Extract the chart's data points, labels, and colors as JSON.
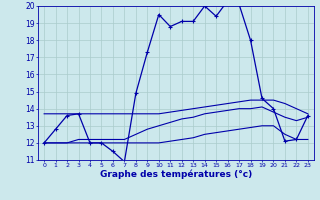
{
  "title": "Graphe des températures (°c)",
  "bg_color": "#cce8ec",
  "grid_color": "#aacccc",
  "line_color": "#0000aa",
  "xlim": [
    -0.5,
    23.5
  ],
  "ylim": [
    11,
    20
  ],
  "yticks": [
    11,
    12,
    13,
    14,
    15,
    16,
    17,
    18,
    19,
    20
  ],
  "xticks": [
    0,
    1,
    2,
    3,
    4,
    5,
    6,
    7,
    8,
    9,
    10,
    11,
    12,
    13,
    14,
    15,
    16,
    17,
    18,
    19,
    20,
    21,
    22,
    23
  ],
  "series_main": [
    12.0,
    12.8,
    13.6,
    13.7,
    12.0,
    12.0,
    11.5,
    10.9,
    14.9,
    17.3,
    19.5,
    18.8,
    19.1,
    19.1,
    20.0,
    19.4,
    20.3,
    20.1,
    18.0,
    14.6,
    14.0,
    12.1,
    12.2,
    13.6
  ],
  "series_max": [
    13.7,
    13.7,
    13.7,
    13.7,
    13.7,
    13.7,
    13.7,
    13.7,
    13.7,
    13.7,
    13.7,
    13.8,
    13.9,
    14.0,
    14.1,
    14.2,
    14.3,
    14.4,
    14.5,
    14.5,
    14.5,
    14.3,
    14.0,
    13.7
  ],
  "series_min": [
    12.0,
    12.0,
    12.0,
    12.0,
    12.0,
    12.0,
    12.0,
    12.0,
    12.0,
    12.0,
    12.0,
    12.1,
    12.2,
    12.3,
    12.5,
    12.6,
    12.7,
    12.8,
    12.9,
    13.0,
    13.0,
    12.5,
    12.2,
    12.2
  ],
  "series_avg": [
    12.0,
    12.0,
    12.0,
    12.2,
    12.2,
    12.2,
    12.2,
    12.2,
    12.5,
    12.8,
    13.0,
    13.2,
    13.4,
    13.5,
    13.7,
    13.8,
    13.9,
    14.0,
    14.0,
    14.1,
    13.8,
    13.5,
    13.3,
    13.5
  ]
}
